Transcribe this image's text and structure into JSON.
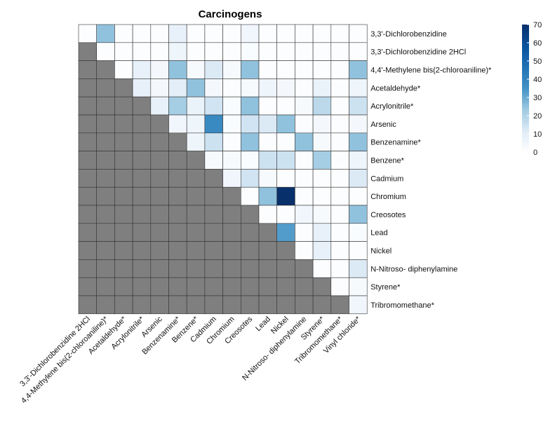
{
  "chart_data": {
    "type": "heatmap",
    "title": "Carcinogens",
    "rows": [
      "3,3'-Dichlorobenzidine",
      "3,3'-Dichlorobenzidine 2HCl",
      "4,4'-Methylene bis(2-chloroaniline)*",
      "Acetaldehyde*",
      "Acrylonitrile*",
      "Arsenic",
      "Benzenamine*",
      "Benzene*",
      "Cadmium",
      "Chromium",
      "Creosotes",
      "Lead",
      "Nickel",
      "N-Nitroso- diphenylamine",
      "Styrene*",
      "Tribromomethane*"
    ],
    "columns": [
      "3,3'-Dichlorobenzidine 2HCl",
      "4,4-Methylene bis(2-chloroaniline)*",
      "Acetaldehyde*",
      "Acrylonitrile*",
      "Arsenic",
      "Benzenamine*",
      "Benzene*",
      "Cadmium",
      "Chromium",
      "Creosotes",
      "Lead",
      "Nickel",
      "N-Nitroso- diphenylamine",
      "Styrene*",
      "Tribromomethane*",
      "Vinyl chloride*"
    ],
    "values": [
      [
        1,
        25,
        1,
        1,
        1,
        8,
        1,
        1,
        1,
        5,
        1,
        1,
        1,
        1,
        1,
        1
      ],
      [
        null,
        1,
        1,
        1,
        1,
        6,
        1,
        1,
        1,
        2,
        1,
        1,
        1,
        1,
        1,
        1
      ],
      [
        null,
        null,
        1,
        8,
        4,
        25,
        3,
        12,
        3,
        25,
        1,
        1,
        1,
        1,
        1,
        25
      ],
      [
        null,
        null,
        null,
        8,
        4,
        10,
        25,
        4,
        1,
        3,
        6,
        4,
        1,
        7,
        1,
        6
      ],
      [
        null,
        null,
        null,
        null,
        8,
        22,
        7,
        14,
        2,
        25,
        1,
        1,
        3,
        18,
        1,
        15
      ],
      [
        null,
        null,
        null,
        null,
        null,
        5,
        6,
        38,
        2,
        14,
        12,
        25,
        1,
        4,
        1,
        4
      ],
      [
        null,
        null,
        null,
        null,
        null,
        null,
        6,
        15,
        1,
        25,
        1,
        1,
        25,
        3,
        1,
        25
      ],
      [
        null,
        null,
        null,
        null,
        null,
        null,
        null,
        3,
        3,
        2,
        15,
        15,
        1,
        22,
        1,
        6
      ],
      [
        null,
        null,
        null,
        null,
        null,
        null,
        null,
        null,
        5,
        14,
        3,
        1,
        1,
        1,
        1,
        12
      ],
      [
        null,
        null,
        null,
        null,
        null,
        null,
        null,
        null,
        null,
        1,
        25,
        70,
        1,
        1,
        1,
        1
      ],
      [
        null,
        null,
        null,
        null,
        null,
        null,
        null,
        null,
        null,
        null,
        1,
        1,
        5,
        3,
        1,
        25
      ],
      [
        null,
        null,
        null,
        null,
        null,
        null,
        null,
        null,
        null,
        null,
        null,
        33,
        1,
        8,
        1,
        2
      ],
      [
        null,
        null,
        null,
        null,
        null,
        null,
        null,
        null,
        null,
        null,
        null,
        null,
        1,
        8,
        1,
        1
      ],
      [
        null,
        null,
        null,
        null,
        null,
        null,
        null,
        null,
        null,
        null,
        null,
        null,
        null,
        1,
        1,
        12
      ],
      [
        null,
        null,
        null,
        null,
        null,
        null,
        null,
        null,
        null,
        null,
        null,
        null,
        null,
        null,
        1,
        3
      ],
      [
        null,
        null,
        null,
        null,
        null,
        null,
        null,
        null,
        null,
        null,
        null,
        null,
        null,
        null,
        null,
        5
      ]
    ],
    "missing_color": "#7f7f7f",
    "colorbar": {
      "min": 0,
      "max": 70,
      "ticks": [
        0,
        10,
        20,
        30,
        40,
        50,
        60,
        70
      ],
      "colors": [
        "#ffffff",
        "#deebf7",
        "#9ecae1",
        "#4292c6",
        "#2171b5",
        "#08519c",
        "#08306b"
      ]
    },
    "legend_position": "top-right",
    "grid": true
  }
}
